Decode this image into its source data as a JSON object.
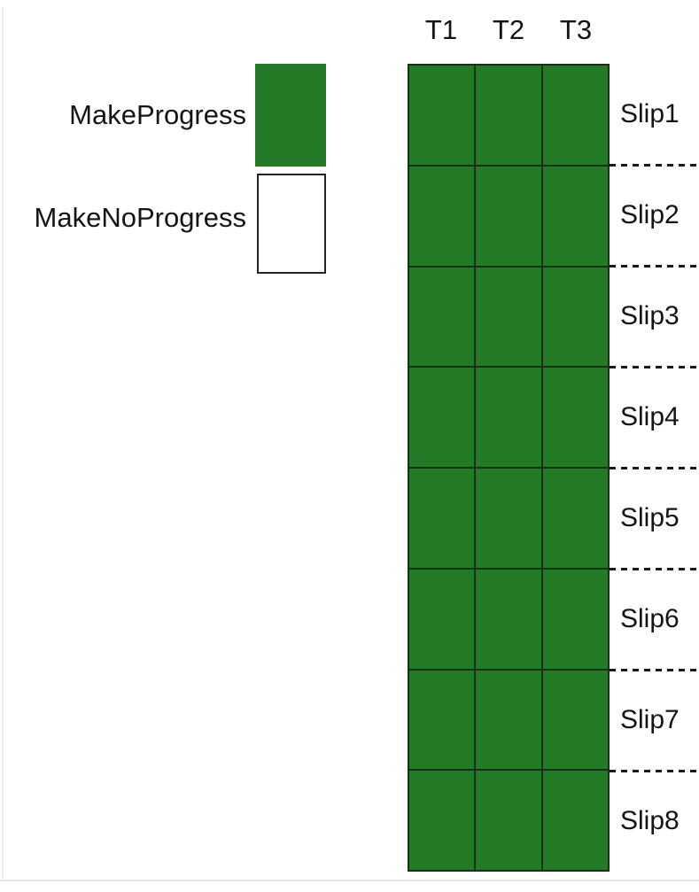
{
  "legend": {
    "items": [
      {
        "label": "MakeProgress",
        "swatch": "filled"
      },
      {
        "label": "MakeNoProgress",
        "swatch": "empty"
      }
    ]
  },
  "chart_data": {
    "type": "heatmap",
    "title": "",
    "columns": [
      "T1",
      "T2",
      "T3"
    ],
    "rows": [
      "Slip1",
      "Slip2",
      "Slip3",
      "Slip4",
      "Slip5",
      "Slip6",
      "Slip7",
      "Slip8"
    ],
    "values": [
      [
        "MakeProgress",
        "MakeProgress",
        "MakeProgress"
      ],
      [
        "MakeProgress",
        "MakeProgress",
        "MakeProgress"
      ],
      [
        "MakeProgress",
        "MakeProgress",
        "MakeProgress"
      ],
      [
        "MakeProgress",
        "MakeProgress",
        "MakeProgress"
      ],
      [
        "MakeProgress",
        "MakeProgress",
        "MakeProgress"
      ],
      [
        "MakeProgress",
        "MakeProgress",
        "MakeProgress"
      ],
      [
        "MakeProgress",
        "MakeProgress",
        "MakeProgress"
      ],
      [
        "MakeProgress",
        "MakeProgress",
        "MakeProgress"
      ]
    ],
    "colors": {
      "MakeProgress": "#237b28",
      "MakeNoProgress": "#ffffff",
      "gridline": "#173117",
      "separator": "#191919",
      "text": "#141414"
    },
    "layout": {
      "legend_position": "top-left",
      "column_headers_position": "top",
      "row_labels_position": "right",
      "row_separators": "dashed",
      "grid": true
    }
  }
}
